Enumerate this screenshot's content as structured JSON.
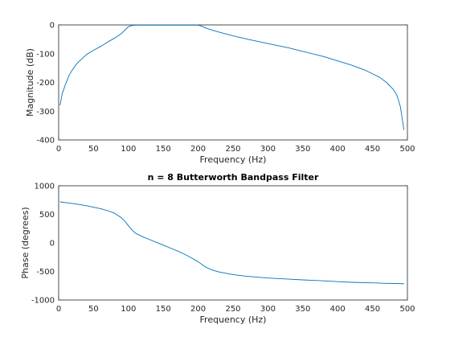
{
  "chart_data": [
    {
      "type": "line",
      "title": "",
      "xlabel": "Frequency (Hz)",
      "ylabel": "Magnitude (dB)",
      "xlim": [
        0,
        500
      ],
      "ylim": [
        -400,
        0
      ],
      "xticks": [
        "0",
        "50",
        "100",
        "150",
        "200",
        "250",
        "300",
        "350",
        "400",
        "450",
        "500"
      ],
      "yticks": [
        "0",
        "-100",
        "-200",
        "-300",
        "-400"
      ],
      "grid": true,
      "line_color": "#0072BD",
      "series": [
        {
          "name": "",
          "x": [
            2,
            5,
            10,
            15,
            20,
            25,
            30,
            40,
            50,
            60,
            70,
            80,
            90,
            95,
            100,
            105,
            110,
            150,
            200,
            205,
            210,
            220,
            230,
            250,
            270,
            300,
            330,
            350,
            380,
            400,
            420,
            440,
            450,
            460,
            470,
            480,
            485,
            490,
            495
          ],
          "y": [
            -280,
            -240,
            -205,
            -175,
            -155,
            -138,
            -125,
            -103,
            -88,
            -75,
            -60,
            -46,
            -30,
            -18,
            -6,
            -2,
            -1,
            -1,
            -1,
            -4,
            -10,
            -18,
            -25,
            -38,
            -49,
            -65,
            -80,
            -92,
            -110,
            -125,
            -140,
            -158,
            -170,
            -182,
            -200,
            -225,
            -245,
            -285,
            -365
          ]
        }
      ]
    },
    {
      "type": "line",
      "title": "n = 8 Butterworth Bandpass Filter",
      "xlabel": "Frequency (Hz)",
      "ylabel": "Phase (degrees)",
      "xlim": [
        0,
        500
      ],
      "ylim": [
        -1000,
        1000
      ],
      "xticks": [
        "0",
        "50",
        "100",
        "150",
        "200",
        "250",
        "300",
        "350",
        "400",
        "450",
        "500"
      ],
      "yticks": [
        "1000",
        "500",
        "0",
        "-500",
        "-1000"
      ],
      "grid": true,
      "line_color": "#0072BD",
      "series": [
        {
          "name": "",
          "x": [
            2,
            10,
            20,
            30,
            40,
            50,
            60,
            70,
            80,
            90,
            95,
            100,
            105,
            110,
            120,
            130,
            140,
            150,
            160,
            170,
            180,
            190,
            200,
            210,
            220,
            230,
            250,
            270,
            300,
            330,
            350,
            380,
            400,
            420,
            450,
            470,
            495
          ],
          "y": [
            720,
            705,
            690,
            672,
            650,
            625,
            600,
            565,
            520,
            440,
            380,
            300,
            230,
            170,
            110,
            60,
            10,
            -40,
            -90,
            -140,
            -195,
            -260,
            -330,
            -420,
            -475,
            -510,
            -555,
            -585,
            -615,
            -635,
            -648,
            -665,
            -678,
            -690,
            -700,
            -708,
            -715
          ]
        }
      ]
    }
  ]
}
